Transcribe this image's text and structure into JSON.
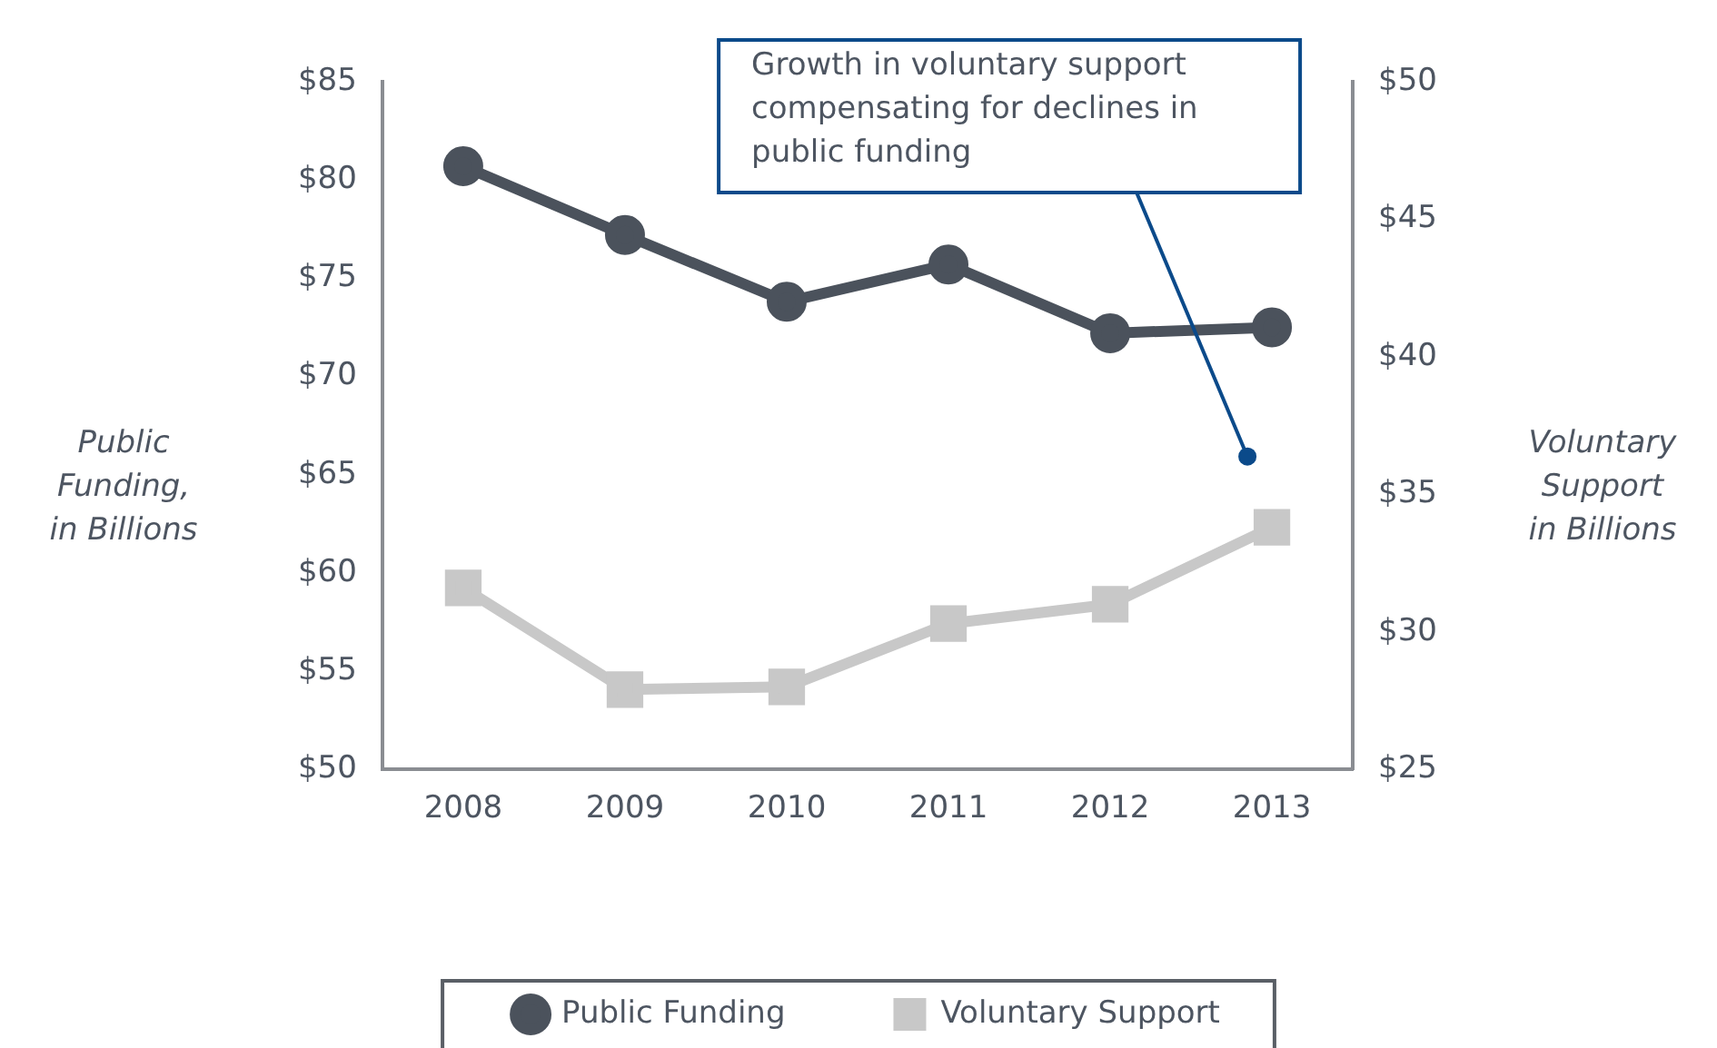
{
  "chart_data": {
    "type": "line",
    "categories": [
      "2008",
      "2009",
      "2010",
      "2011",
      "2012",
      "2013"
    ],
    "series": [
      {
        "name": "Public Funding",
        "color": "#4b525c",
        "marker": "circle",
        "values": [
          80.7,
          77.2,
          73.8,
          75.7,
          72.2,
          72.5
        ]
      },
      {
        "name": "Voluntary Support",
        "color": "#c8c8c8",
        "marker": "square",
        "axis": "y2",
        "values": [
          31.6,
          27.9,
          28.0,
          30.3,
          31.0,
          33.8
        ]
      }
    ],
    "ylabel": "Public\nFunding,\nin Billions",
    "y2label": "Voluntary\nSupport\nin Billions",
    "ylim": [
      50,
      85
    ],
    "yticks": [
      {
        "value": 50,
        "label": "$50"
      },
      {
        "value": 55,
        "label": "$55"
      },
      {
        "value": 60,
        "label": "$60"
      },
      {
        "value": 65,
        "label": "$65"
      },
      {
        "value": 70,
        "label": "$70"
      },
      {
        "value": 75,
        "label": "$75"
      },
      {
        "value": 80,
        "label": "$80"
      },
      {
        "value": 85,
        "label": "$85"
      }
    ],
    "y2lim": [
      25,
      50
    ],
    "y2ticks": [
      {
        "value": 25,
        "label": "$25"
      },
      {
        "value": 30,
        "label": "$30"
      },
      {
        "value": 35,
        "label": "$35"
      },
      {
        "value": 40,
        "label": "$40"
      },
      {
        "value": 45,
        "label": "$45"
      },
      {
        "value": 50,
        "label": "$50"
      }
    ],
    "grid": false,
    "legend": "bottom",
    "annotations": [
      "Growth in voluntary support compensating for declines in public funding"
    ]
  }
}
